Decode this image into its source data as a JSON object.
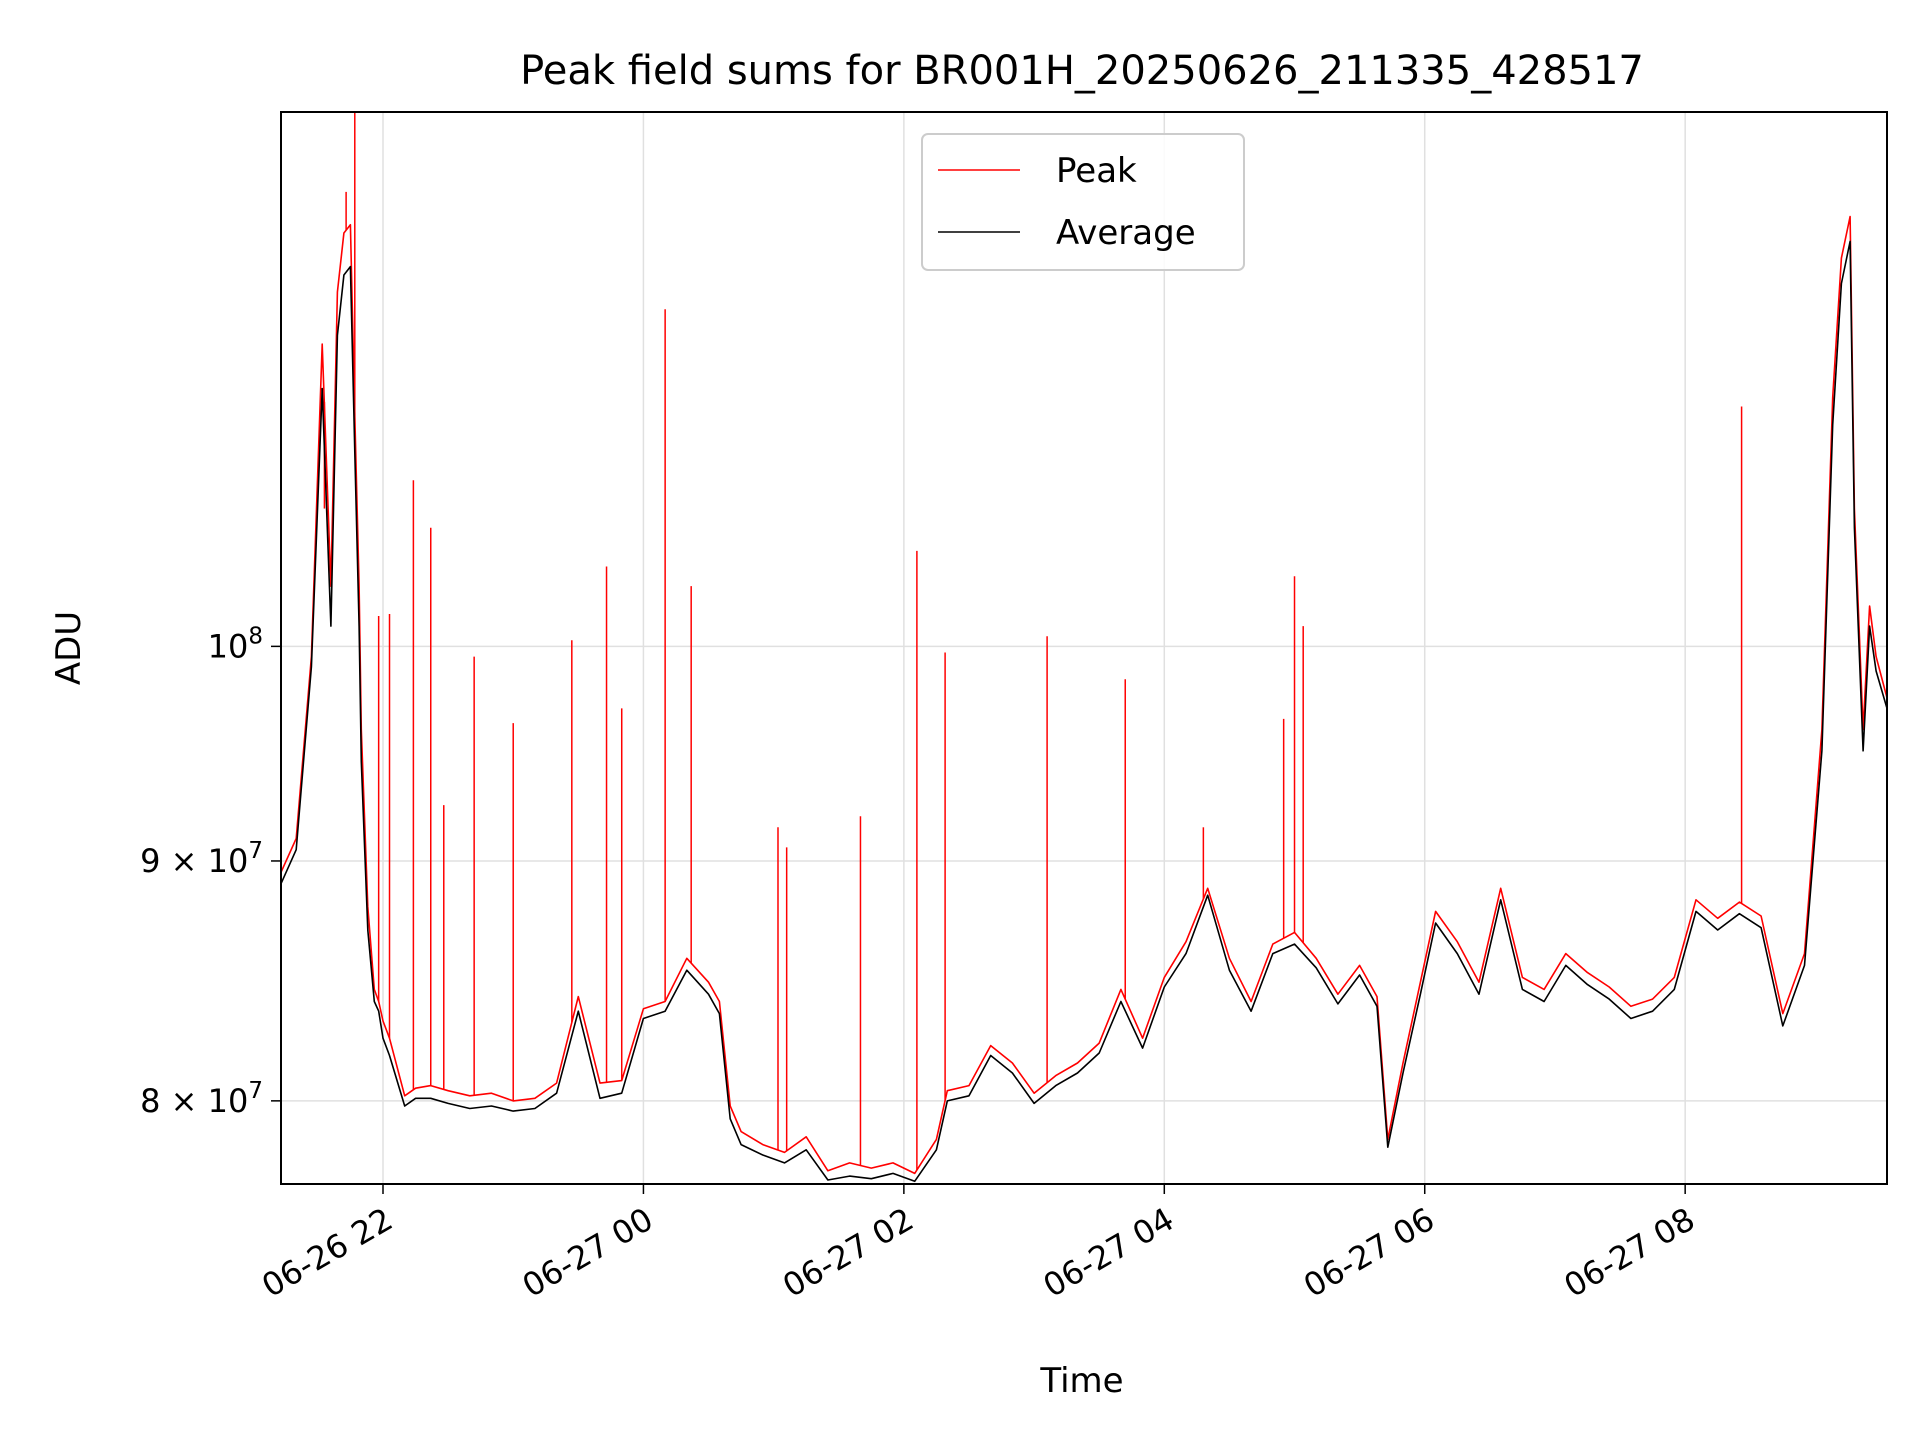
{
  "chart_data": {
    "type": "line",
    "title": "Peak field sums for BR001H_20250626_211335_428517",
    "xlabel": "Time",
    "ylabel": "ADU",
    "y_scale": "log",
    "grid": true,
    "legend_position": "top-center",
    "xlim": [
      "06-26 21:13",
      "06-27 09:33"
    ],
    "ylim": [
      76800000,
      130000000
    ],
    "x_ticks": [
      {
        "value": "06-26 22:00",
        "label": "06-26 22"
      },
      {
        "value": "06-27 00:00",
        "label": "06-27 00"
      },
      {
        "value": "06-27 02:00",
        "label": "06-27 02"
      },
      {
        "value": "06-27 04:00",
        "label": "06-27 04"
      },
      {
        "value": "06-27 06:00",
        "label": "06-27 06"
      },
      {
        "value": "06-27 08:00",
        "label": "06-27 08"
      }
    ],
    "y_ticks": [
      {
        "value": 80000000,
        "label": "8 × 10^7",
        "mantissa": "8",
        "exponent": "7"
      },
      {
        "value": 90000000,
        "label": "9 × 10^7",
        "mantissa": "9",
        "exponent": "7"
      },
      {
        "value": 100000000,
        "label": "10^8",
        "mantissa": "",
        "exponent": "8"
      }
    ],
    "series": [
      {
        "name": "Peak",
        "color": "#ff0000",
        "x": [
          "06-26 21:13",
          "06-26 21:20",
          "06-26 21:27",
          "06-26 21:32",
          "06-26 21:36",
          "06-26 21:39",
          "06-26 21:42",
          "06-26 21:45",
          "06-26 21:47",
          "06-26 21:49",
          "06-26 21:50",
          "06-26 21:53",
          "06-26 21:56",
          "06-26 21:58",
          "06-26 22:00",
          "06-26 22:03",
          "06-26 22:10",
          "06-26 22:15",
          "06-26 22:22",
          "06-26 22:30",
          "06-26 22:40",
          "06-26 22:50",
          "06-26 23:00",
          "06-26 23:10",
          "06-26 23:20",
          "06-26 23:30",
          "06-26 23:40",
          "06-26 23:50",
          "06-27 00:00",
          "06-27 00:10",
          "06-27 00:20",
          "06-27 00:30",
          "06-27 00:35",
          "06-27 00:40",
          "06-27 00:45",
          "06-27 00:55",
          "06-27 01:05",
          "06-27 01:15",
          "06-27 01:25",
          "06-27 01:35",
          "06-27 01:45",
          "06-27 01:55",
          "06-27 02:05",
          "06-27 02:15",
          "06-27 02:20",
          "06-27 02:30",
          "06-27 02:40",
          "06-27 02:50",
          "06-27 03:00",
          "06-27 03:10",
          "06-27 03:20",
          "06-27 03:30",
          "06-27 03:40",
          "06-27 03:50",
          "06-27 04:00",
          "06-27 04:10",
          "06-27 04:20",
          "06-27 04:30",
          "06-27 04:40",
          "06-27 04:50",
          "06-27 05:00",
          "06-27 05:10",
          "06-27 05:20",
          "06-27 05:30",
          "06-27 05:38",
          "06-27 05:43",
          "06-27 05:50",
          "06-27 05:58",
          "06-27 06:05",
          "06-27 06:15",
          "06-27 06:25",
          "06-27 06:35",
          "06-27 06:45",
          "06-27 06:55",
          "06-27 07:05",
          "06-27 07:15",
          "06-27 07:25",
          "06-27 07:35",
          "06-27 07:45",
          "06-27 07:55",
          "06-27 08:05",
          "06-27 08:15",
          "06-27 08:25",
          "06-27 08:35",
          "06-27 08:45",
          "06-27 08:55",
          "06-27 09:03",
          "06-27 09:08",
          "06-27 09:12",
          "06-27 09:16",
          "06-27 09:18",
          "06-27 09:22",
          "06-27 09:25",
          "06-27 09:28",
          "06-27 09:33"
        ],
        "values": [
          89500000,
          91000000,
          99500000,
          116000000,
          103000000,
          119000000,
          122500000,
          123000000,
          112000000,
          103000000,
          96000000,
          88000000,
          84500000,
          84000000,
          83200000,
          82500000,
          80200000,
          80500000,
          80600000,
          80400000,
          80200000,
          80300000,
          80000000,
          80100000,
          80700000,
          84200000,
          80700000,
          80800000,
          83700000,
          84000000,
          85800000,
          84800000,
          84000000,
          79800000,
          78800000,
          78300000,
          78000000,
          78600000,
          77300000,
          77600000,
          77400000,
          77600000,
          77200000,
          78500000,
          80400000,
          80600000,
          82200000,
          81500000,
          80300000,
          81000000,
          81500000,
          82300000,
          84500000,
          82500000,
          85000000,
          86500000,
          88800000,
          85800000,
          84000000,
          86400000,
          86900000,
          85800000,
          84300000,
          85500000,
          84200000,
          78500000,
          81500000,
          84800000,
          87800000,
          86500000,
          84800000,
          88800000,
          85000000,
          84500000,
          86000000,
          85200000,
          84600000,
          83800000,
          84100000,
          85000000,
          88300000,
          87500000,
          88200000,
          87600000,
          83500000,
          86000000,
          96000000,
          113000000,
          121000000,
          123500000,
          107000000,
          96000000,
          102000000,
          99500000,
          97500000
        ]
      },
      {
        "name": "Average",
        "color": "#000000",
        "x": [
          "06-26 21:13",
          "06-26 21:20",
          "06-26 21:27",
          "06-26 21:32",
          "06-26 21:36",
          "06-26 21:39",
          "06-26 21:42",
          "06-26 21:45",
          "06-26 21:47",
          "06-26 21:49",
          "06-26 21:50",
          "06-26 21:53",
          "06-26 21:56",
          "06-26 21:58",
          "06-26 22:00",
          "06-26 22:03",
          "06-26 22:10",
          "06-26 22:15",
          "06-26 22:22",
          "06-26 22:30",
          "06-26 22:40",
          "06-26 22:50",
          "06-26 23:00",
          "06-26 23:10",
          "06-26 23:20",
          "06-26 23:30",
          "06-26 23:40",
          "06-26 23:50",
          "06-27 00:00",
          "06-27 00:10",
          "06-27 00:20",
          "06-27 00:30",
          "06-27 00:35",
          "06-27 00:40",
          "06-27 00:45",
          "06-27 00:55",
          "06-27 01:05",
          "06-27 01:15",
          "06-27 01:25",
          "06-27 01:35",
          "06-27 01:45",
          "06-27 01:55",
          "06-27 02:05",
          "06-27 02:15",
          "06-27 02:20",
          "06-27 02:30",
          "06-27 02:40",
          "06-27 02:50",
          "06-27 03:00",
          "06-27 03:10",
          "06-27 03:20",
          "06-27 03:30",
          "06-27 03:40",
          "06-27 03:50",
          "06-27 04:00",
          "06-27 04:10",
          "06-27 04:20",
          "06-27 04:30",
          "06-27 04:40",
          "06-27 04:50",
          "06-27 05:00",
          "06-27 05:10",
          "06-27 05:20",
          "06-27 05:30",
          "06-27 05:38",
          "06-27 05:43",
          "06-27 05:50",
          "06-27 05:58",
          "06-27 06:05",
          "06-27 06:15",
          "06-27 06:25",
          "06-27 06:35",
          "06-27 06:45",
          "06-27 06:55",
          "06-27 07:05",
          "06-27 07:15",
          "06-27 07:25",
          "06-27 07:35",
          "06-27 07:45",
          "06-27 07:55",
          "06-27 08:05",
          "06-27 08:15",
          "06-27 08:25",
          "06-27 08:35",
          "06-27 08:45",
          "06-27 08:55",
          "06-27 09:03",
          "06-27 09:08",
          "06-27 09:12",
          "06-27 09:16",
          "06-27 09:18",
          "06-27 09:22",
          "06-27 09:25",
          "06-27 09:28",
          "06-27 09:33"
        ],
        "values": [
          89000000,
          90500000,
          99000000,
          113500000,
          101000000,
          116500000,
          120000000,
          120500000,
          110000000,
          101000000,
          94500000,
          87000000,
          84000000,
          83600000,
          82500000,
          81800000,
          79800000,
          80100000,
          80100000,
          79900000,
          79700000,
          79800000,
          79600000,
          79700000,
          80300000,
          83600000,
          80100000,
          80300000,
          83300000,
          83600000,
          85300000,
          84300000,
          83500000,
          79300000,
          78300000,
          77900000,
          77600000,
          78100000,
          76950000,
          77100000,
          77000000,
          77200000,
          76900000,
          78100000,
          80000000,
          80200000,
          81800000,
          81100000,
          79900000,
          80600000,
          81100000,
          81900000,
          84000000,
          82100000,
          84600000,
          86000000,
          88500000,
          85300000,
          83600000,
          86000000,
          86400000,
          85400000,
          83900000,
          85100000,
          83800000,
          78200000,
          81100000,
          84300000,
          87300000,
          86000000,
          84300000,
          88300000,
          84500000,
          84000000,
          85500000,
          84700000,
          84100000,
          83300000,
          83600000,
          84500000,
          87800000,
          87000000,
          87700000,
          87100000,
          83000000,
          85500000,
          95000000,
          111500000,
          119500000,
          122000000,
          106000000,
          95000000,
          101000000,
          98800000,
          97000000
        ]
      }
    ],
    "spikes": {
      "x": [
        "06-26 21:33",
        "06-26 21:43",
        "06-26 21:47",
        "06-26 21:58",
        "06-26 22:03",
        "06-26 22:14",
        "06-26 22:22",
        "06-26 22:28",
        "06-26 22:42",
        "06-26 23:00",
        "06-26 23:27",
        "06-26 23:43",
        "06-26 23:50",
        "06-27 00:10",
        "06-27 00:22",
        "06-27 01:02",
        "06-27 01:06",
        "06-27 01:40",
        "06-27 02:06",
        "06-27 02:19",
        "06-27 03:06",
        "06-27 03:42",
        "06-27 04:18",
        "06-27 04:55",
        "06-27 05:00",
        "06-27 05:04",
        "06-27 08:26"
      ],
      "values": [
        107000000,
        125000000,
        130000000,
        101500000,
        101600000,
        108500000,
        106000000,
        92500000,
        99500000,
        96300000,
        100300000,
        104000000,
        97000000,
        118000000,
        103000000,
        91500000,
        90600000,
        92000000,
        104800000,
        99700000,
        100500000,
        98400000,
        91500000,
        96500000,
        103500000,
        101000000,
        112500000
      ]
    }
  },
  "legend": {
    "peak_label": "Peak",
    "average_label": "Average"
  }
}
